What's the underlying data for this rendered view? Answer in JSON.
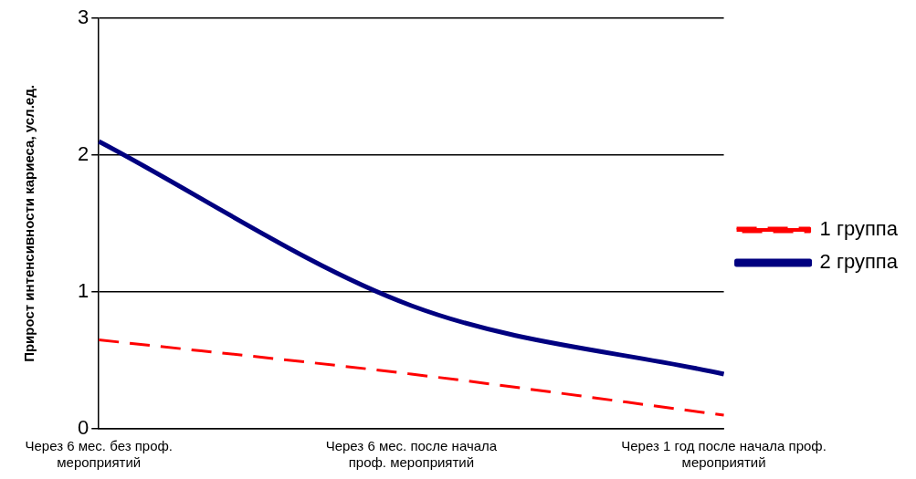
{
  "chart_data": {
    "type": "line",
    "ylabel": "Прирост интенсивности кариеса, усл.ед.",
    "categories": [
      "Через 6 мес. без проф. мероприятий",
      "Через 6 мес. после начала проф. мероприятий",
      "Через 1 год после начала проф. мероприятий"
    ],
    "series": [
      {
        "name": "1 группа",
        "color": "#ff0000",
        "line_style": "dashed",
        "values": [
          0.65,
          0.4,
          0.1
        ]
      },
      {
        "name": "2 группа",
        "color": "#000080",
        "line_style": "solid",
        "values": [
          2.1,
          0.9,
          0.4
        ]
      }
    ],
    "ylim": [
      0,
      3
    ],
    "yticks": [
      0,
      1,
      2,
      3
    ],
    "grid": "y",
    "legend": "right",
    "marker": "none"
  }
}
